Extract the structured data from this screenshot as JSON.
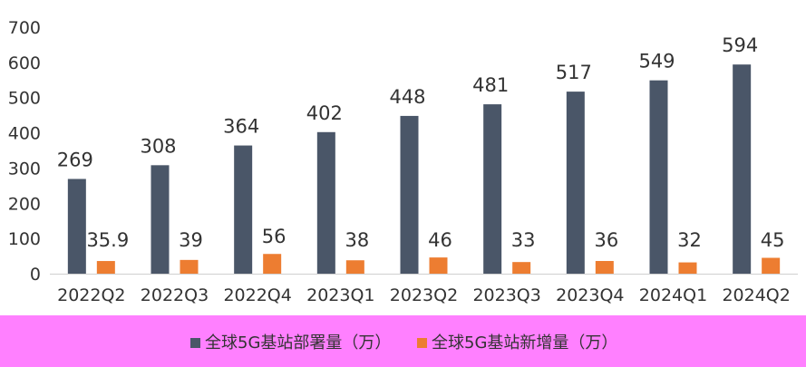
{
  "chart_data": {
    "type": "bar",
    "title": "",
    "xlabel": "",
    "ylabel": "",
    "ylim": [
      0,
      700
    ],
    "yticks": [
      0,
      100,
      200,
      300,
      400,
      500,
      600,
      700
    ],
    "grid": false,
    "legend_position": "bottom",
    "categories": [
      "2022Q2",
      "2022Q3",
      "2022Q4",
      "2023Q1",
      "2023Q2",
      "2023Q3",
      "2023Q4",
      "2024Q1",
      "2024Q2"
    ],
    "series": [
      {
        "name": "全球5G基站部署量（万）",
        "color": "#4a5668",
        "values": [
          269,
          308,
          364,
          402,
          448,
          481,
          517,
          549,
          594
        ],
        "labels": [
          "269",
          "308",
          "364",
          "402",
          "448",
          "481",
          "517",
          "549",
          "594"
        ]
      },
      {
        "name": "全球5G基站新增量（万）",
        "color": "#ed7d31",
        "values": [
          35.9,
          39,
          56,
          38,
          46,
          33,
          36,
          32,
          45
        ],
        "labels": [
          "35.9",
          "39",
          "56",
          "38",
          "46",
          "33",
          "36",
          "32",
          "45"
        ]
      }
    ]
  },
  "colors": {
    "highlight_band": "#ff80ff",
    "axis_line": "#d0d0d0"
  }
}
